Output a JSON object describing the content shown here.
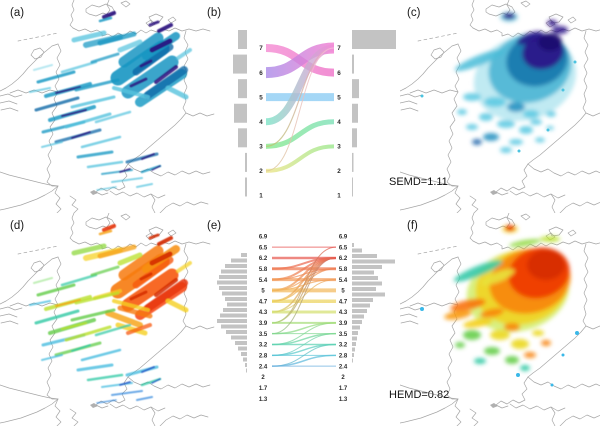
{
  "panels": {
    "a": {
      "label": "(a)"
    },
    "b": {
      "label": "(b)"
    },
    "c": {
      "label": "(c)",
      "metric": "SEMD=1.11"
    },
    "d": {
      "label": "(d)"
    },
    "e": {
      "label": "(e)"
    },
    "f": {
      "label": "(f)",
      "metric": "HEMD=0.82"
    }
  },
  "colors": {
    "map_border": "#a6a6a6",
    "histogram_bar": "#c3c3c3",
    "blue_scale": [
      "#9adeeb",
      "#55c3de",
      "#1596c2",
      "#0e6aa8",
      "#2a0f7e"
    ],
    "rainbow_scale": [
      "#2353c6",
      "#3cb9de",
      "#2fc9a4",
      "#62cc48",
      "#b9e02a",
      "#f5d020",
      "#f7a012",
      "#f7590e",
      "#d42b05"
    ]
  },
  "chart_data": [
    {
      "id": "a",
      "type": "heatmap",
      "subtype": "precipitation_map",
      "title": "(a)",
      "palette": "blues",
      "description": "Observed field: elongated blue rain streaks over western and central Germany with a dense dark blue-violet cluster in the northeast"
    },
    {
      "id": "b",
      "type": "area",
      "subtype": "alluvial_rank_diagram",
      "title": "(b)",
      "levels": [
        "7",
        "6",
        "5",
        "4",
        "3",
        "2",
        "1"
      ],
      "level_colors": {
        "7": "#f27fd2",
        "6": "#a98ae8",
        "5": "#8ecdf4",
        "4": "#7ce4c6",
        "3": "#8ce98e",
        "2": "#eee488",
        "1": "#cfcfcf"
      },
      "flows": [
        {
          "from": "7",
          "to": "6",
          "w": 8,
          "c1": "#f48ad2",
          "c2": "#ee72c8"
        },
        {
          "from": "6",
          "to": "7",
          "w": 11,
          "c1": "#a98ae8",
          "c2": "#f27ad0"
        },
        {
          "from": "5",
          "to": "5",
          "w": 8,
          "c1": "#8ecdf4",
          "c2": "#8ecdf4"
        },
        {
          "from": "4",
          "to": "7",
          "w": 7,
          "c1": "#7ce4c6",
          "c2": "#f48ad8"
        },
        {
          "from": "3",
          "to": "4",
          "w": 5,
          "c1": "#86e88a",
          "c2": "#7de0b8"
        },
        {
          "from": "2",
          "to": "3",
          "w": 4,
          "c1": "#eee488",
          "c2": "#9ae88e"
        },
        {
          "from": "3",
          "to": "7",
          "w": 1.2,
          "c1": "#b8c86a",
          "c2": "#f0a0d8"
        },
        {
          "from": "2",
          "to": "7",
          "w": 1,
          "c1": "#d8c890",
          "c2": "#f8b8e0"
        }
      ],
      "left_hist": [
        9,
        14,
        9,
        13,
        9,
        2,
        2
      ],
      "right_hist": [
        44,
        2,
        7,
        6,
        5,
        1.5,
        1
      ]
    },
    {
      "id": "c",
      "type": "heatmap",
      "subtype": "precipitation_map",
      "title": "(c)",
      "metric": "SEMD=1.11",
      "palette": "blues",
      "description": "Smoothed blue field concentrated over northeastern Germany with scattered cyan cells to the south and west"
    },
    {
      "id": "d",
      "type": "heatmap",
      "subtype": "precipitation_map",
      "title": "(d)",
      "palette": "rainbow",
      "description": "Forecast field: rainbow streaks, red-orange core in the northeast, green and cyan streaks across the west and south"
    },
    {
      "id": "e",
      "type": "area",
      "subtype": "alluvial_rank_diagram",
      "title": "(e)",
      "levels": [
        "6.9",
        "6.5",
        "6.2",
        "5.8",
        "5.4",
        "5",
        "4.7",
        "4.3",
        "3.9",
        "3.5",
        "3.2",
        "2.8",
        "2.4",
        "2",
        "1.7",
        "1.3"
      ],
      "level_colors": {
        "6.9": "#e23b3b",
        "6.5": "#e64a47",
        "6.2": "#e85a50",
        "5.8": "#ef7a52",
        "5.4": "#f29a58",
        "5": "#f2b95c",
        "4.7": "#ecd35e",
        "4.3": "#d4e070",
        "3.9": "#a6dd7a",
        "3.5": "#7ed88e",
        "3.2": "#5cd2b2",
        "2.8": "#55c4d8",
        "2.4": "#66aede",
        "2": "#7f9fd8",
        "1.7": "#8f97d0",
        "1.3": "#9f8fc8"
      },
      "flows": [
        {
          "from": "6.5",
          "to": "6.5",
          "w": 1
        },
        {
          "from": "6.2",
          "to": "6.2",
          "w": 2.5
        },
        {
          "from": "5.8",
          "to": "5.8",
          "w": 3
        },
        {
          "from": "5.8",
          "to": "6.2",
          "w": 2
        },
        {
          "from": "5.4",
          "to": "5.4",
          "w": 3
        },
        {
          "from": "5.4",
          "to": "6.2",
          "w": 2
        },
        {
          "from": "5.4",
          "to": "5.8",
          "w": 1.2
        },
        {
          "from": "5",
          "to": "5",
          "w": 4
        },
        {
          "from": "5",
          "to": "6.2",
          "w": 2
        },
        {
          "from": "5",
          "to": "5.8",
          "w": 1.2
        },
        {
          "from": "5",
          "to": "5.4",
          "w": 1.2
        },
        {
          "from": "4.7",
          "to": "4.7",
          "w": 3.5
        },
        {
          "from": "4.7",
          "to": "6.2",
          "w": 1.8
        },
        {
          "from": "4.7",
          "to": "5.8",
          "w": 1.2
        },
        {
          "from": "4.3",
          "to": "4.3",
          "w": 3
        },
        {
          "from": "4.3",
          "to": "6.2",
          "w": 1.5
        },
        {
          "from": "4.3",
          "to": "5.4",
          "w": 1
        },
        {
          "from": "3.9",
          "to": "3.9",
          "w": 2
        },
        {
          "from": "3.9",
          "to": "6.2",
          "w": 1.2
        },
        {
          "from": "3.9",
          "to": "6.5",
          "w": 1
        },
        {
          "from": "3.5",
          "to": "3.5",
          "w": 1
        },
        {
          "from": "3.5",
          "to": "3.9",
          "w": 1.5
        },
        {
          "from": "3.5",
          "to": "6.2",
          "w": 1
        },
        {
          "from": "3.2",
          "to": "3.2",
          "w": 1.5
        },
        {
          "from": "3.2",
          "to": "3.5",
          "w": 1.5
        },
        {
          "from": "3.2",
          "to": "3.9",
          "w": 1
        },
        {
          "from": "2.8",
          "to": "2.8",
          "w": 1
        },
        {
          "from": "2.8",
          "to": "3.2",
          "w": 1.5
        },
        {
          "from": "2.8",
          "to": "3.5",
          "w": 1
        },
        {
          "from": "2.4",
          "to": "2.4",
          "w": 1
        },
        {
          "from": "2.4",
          "to": "2.8",
          "w": 1.5
        },
        {
          "from": "2.4",
          "to": "3.2",
          "w": 1
        }
      ],
      "left_hist": [
        6,
        16,
        22,
        26,
        28,
        30,
        28,
        25,
        22,
        20,
        24,
        27,
        30,
        26,
        21,
        16,
        12,
        9,
        6,
        4,
        2,
        1
      ],
      "right_hist": [
        2,
        10,
        25,
        43,
        30,
        22,
        26,
        30,
        24,
        33,
        21,
        18,
        15,
        12,
        10,
        8,
        6,
        5,
        4,
        3,
        2,
        1
      ]
    },
    {
      "id": "f",
      "type": "heatmap",
      "subtype": "precipitation_map",
      "title": "(f)",
      "metric": "HEMD=0.82",
      "palette": "rainbow",
      "description": "Smoothed rainbow field with a large red-orange core over northeastern Germany, yellow-green fringes and scattered cells to the south"
    }
  ]
}
